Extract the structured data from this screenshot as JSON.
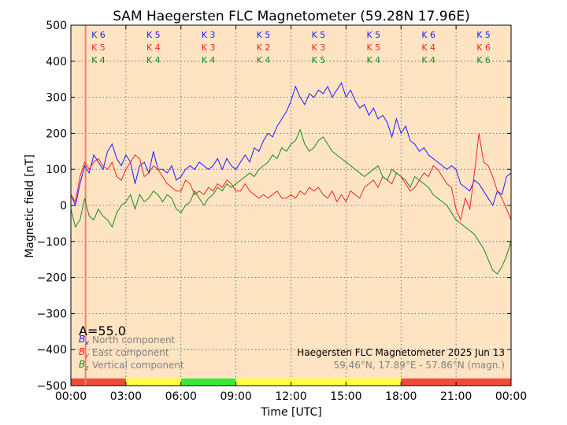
{
  "chart_data": {
    "type": "line",
    "title": "SAM Haegersten FLC Magnetometer (59.28N 17.96E)",
    "xlabel": "Time [UTC]",
    "ylabel": "Magnetic field [nT]",
    "xlim": [
      0,
      24
    ],
    "ylim": [
      -500,
      500
    ],
    "grid": true,
    "x_ticks": [
      {
        "value": 0,
        "label": "00:00"
      },
      {
        "value": 3,
        "label": "03:00"
      },
      {
        "value": 6,
        "label": "06:00"
      },
      {
        "value": 9,
        "label": "09:00"
      },
      {
        "value": 12,
        "label": "12:00"
      },
      {
        "value": 15,
        "label": "15:00"
      },
      {
        "value": 18,
        "label": "18:00"
      },
      {
        "value": 21,
        "label": "21:00"
      },
      {
        "value": 24,
        "label": "00:00"
      }
    ],
    "y_ticks": [
      {
        "value": 500,
        "label": "500"
      },
      {
        "value": 400,
        "label": "400"
      },
      {
        "value": 300,
        "label": "300"
      },
      {
        "value": 200,
        "label": "200"
      },
      {
        "value": 100,
        "label": "100"
      },
      {
        "value": 0,
        "label": "0"
      },
      {
        "value": -100,
        "label": "−100"
      },
      {
        "value": -200,
        "label": "−200"
      },
      {
        "value": -300,
        "label": "−300"
      },
      {
        "value": -400,
        "label": "−400"
      },
      {
        "value": -500,
        "label": "−500"
      }
    ],
    "current_time_marker": 0.8,
    "a_index": "A=55.0",
    "k_indices": [
      {
        "center": 1.5,
        "north": "K 6",
        "east": "K 5",
        "vertical": "K 4"
      },
      {
        "center": 4.5,
        "north": "K 5",
        "east": "K 4",
        "vertical": "K 4"
      },
      {
        "center": 7.5,
        "north": "K 3",
        "east": "K 3",
        "vertical": "K 4"
      },
      {
        "center": 10.5,
        "north": "K 5",
        "east": "K 2",
        "vertical": "K 4"
      },
      {
        "center": 13.5,
        "north": "K 5",
        "east": "K 3",
        "vertical": "K 5"
      },
      {
        "center": 16.5,
        "north": "K 5",
        "east": "K 5",
        "vertical": "K 4"
      },
      {
        "center": 19.5,
        "north": "K 6",
        "east": "K 4",
        "vertical": "K 4"
      },
      {
        "center": 22.5,
        "north": "K 5",
        "east": "K 6",
        "vertical": "K 6"
      }
    ],
    "activity_bar": [
      {
        "from": 0,
        "to": 3,
        "color": "#f04a3a"
      },
      {
        "from": 3,
        "to": 6,
        "color": "#ffff40"
      },
      {
        "from": 6,
        "to": 9,
        "color": "#3ee83a"
      },
      {
        "from": 9,
        "to": 18,
        "color": "#ffff40"
      },
      {
        "from": 18,
        "to": 24,
        "color": "#f04a3a"
      }
    ],
    "legend": [
      {
        "symbol": "B",
        "subscript": "x",
        "label": "North component",
        "color": "#1a1aff"
      },
      {
        "symbol": "B",
        "subscript": "y",
        "label": "East component",
        "color": "#ff2020"
      },
      {
        "symbol": "B",
        "subscript": "z",
        "label": "Vertical component",
        "color": "#1a8a1a"
      }
    ],
    "station_title": "Haegersten FLC Magnetometer 2025 Jun 13",
    "station_coords": "59.46°N, 17.89°E - 57.86°N (magn.)",
    "colors": {
      "plot_bg": "#ffe4c4",
      "north": "#1a1aff",
      "east": "#ff2020",
      "vertical": "#1a8a1a",
      "marker": "#f08070"
    },
    "x": [
      0.0,
      0.25,
      0.5,
      0.75,
      1.0,
      1.25,
      1.5,
      1.75,
      2.0,
      2.25,
      2.5,
      2.75,
      3.0,
      3.25,
      3.5,
      3.75,
      4.0,
      4.25,
      4.5,
      4.75,
      5.0,
      5.25,
      5.5,
      5.75,
      6.0,
      6.25,
      6.5,
      6.75,
      7.0,
      7.25,
      7.5,
      7.75,
      8.0,
      8.25,
      8.5,
      8.75,
      9.0,
      9.25,
      9.5,
      9.75,
      10.0,
      10.25,
      10.5,
      10.75,
      11.0,
      11.25,
      11.5,
      11.75,
      12.0,
      12.25,
      12.5,
      12.75,
      13.0,
      13.25,
      13.5,
      13.75,
      14.0,
      14.25,
      14.5,
      14.75,
      15.0,
      15.25,
      15.5,
      15.75,
      16.0,
      16.25,
      16.5,
      16.75,
      17.0,
      17.25,
      17.5,
      17.75,
      18.0,
      18.25,
      18.5,
      18.75,
      19.0,
      19.25,
      19.5,
      19.75,
      20.0,
      20.25,
      20.5,
      20.75,
      21.0,
      21.25,
      21.5,
      21.75,
      22.0,
      22.25,
      22.5,
      22.75,
      23.0,
      23.25,
      23.5,
      23.75,
      24.0
    ],
    "series": [
      {
        "name": "North component",
        "key": "north",
        "values": [
          30,
          0,
          60,
          110,
          90,
          140,
          120,
          100,
          150,
          170,
          130,
          110,
          140,
          120,
          60,
          110,
          120,
          90,
          150,
          100,
          100,
          90,
          110,
          70,
          80,
          100,
          110,
          100,
          120,
          110,
          100,
          110,
          130,
          100,
          130,
          110,
          100,
          120,
          140,
          120,
          160,
          150,
          180,
          200,
          190,
          220,
          240,
          260,
          290,
          330,
          300,
          280,
          310,
          300,
          320,
          310,
          330,
          300,
          320,
          340,
          300,
          320,
          290,
          270,
          280,
          250,
          270,
          240,
          250,
          230,
          190,
          240,
          200,
          220,
          180,
          170,
          150,
          160,
          140,
          130,
          120,
          110,
          100,
          110,
          100,
          60,
          50,
          40,
          70,
          60,
          40,
          20,
          0,
          40,
          30,
          80,
          90
        ],
        "color": "#1a1aff"
      },
      {
        "name": "East component",
        "key": "east",
        "values": [
          30,
          10,
          80,
          120,
          100,
          120,
          130,
          110,
          100,
          120,
          80,
          70,
          100,
          120,
          140,
          130,
          80,
          90,
          110,
          100,
          80,
          60,
          50,
          40,
          40,
          70,
          60,
          30,
          40,
          30,
          50,
          40,
          60,
          50,
          70,
          60,
          40,
          40,
          60,
          40,
          30,
          20,
          30,
          20,
          30,
          40,
          20,
          20,
          30,
          20,
          40,
          30,
          50,
          40,
          50,
          30,
          20,
          40,
          10,
          30,
          10,
          40,
          30,
          20,
          50,
          60,
          70,
          50,
          80,
          70,
          60,
          90,
          80,
          60,
          40,
          50,
          70,
          90,
          80,
          110,
          100,
          80,
          60,
          50,
          -10,
          -40,
          20,
          -10,
          90,
          200,
          120,
          110,
          80,
          40,
          20,
          -10,
          -40
        ],
        "color": "#ff2020"
      },
      {
        "name": "Vertical component",
        "key": "vertical",
        "values": [
          -10,
          -60,
          -40,
          20,
          -30,
          -40,
          -10,
          -30,
          -40,
          -60,
          -20,
          0,
          10,
          30,
          -10,
          30,
          10,
          20,
          40,
          30,
          10,
          30,
          20,
          -10,
          -20,
          0,
          10,
          40,
          20,
          0,
          20,
          30,
          50,
          40,
          60,
          50,
          60,
          70,
          80,
          90,
          80,
          100,
          110,
          120,
          140,
          130,
          160,
          150,
          170,
          180,
          210,
          170,
          150,
          160,
          180,
          190,
          170,
          150,
          140,
          130,
          120,
          110,
          100,
          90,
          80,
          90,
          100,
          110,
          80,
          70,
          100,
          90,
          80,
          70,
          50,
          80,
          70,
          60,
          50,
          30,
          20,
          10,
          0,
          -20,
          -40,
          -50,
          -60,
          -70,
          -80,
          -100,
          -120,
          -150,
          -180,
          -190,
          -170,
          -140,
          -100
        ],
        "color": "#1a8a1a"
      }
    ]
  }
}
